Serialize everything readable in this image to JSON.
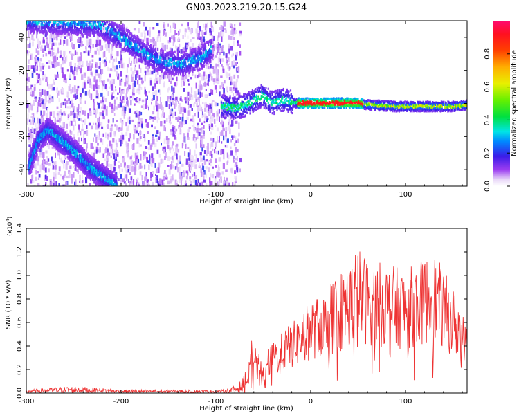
{
  "title": "GN03.2023.219.20.15.G24",
  "chart_data": [
    {
      "type": "heatmap",
      "xlabel": "Height of straight line (km)",
      "ylabel": "Frequency (Hz)",
      "xlim": [
        -300,
        165
      ],
      "ylim": [
        -50,
        50
      ],
      "x_ticks": [
        -300,
        -200,
        -100,
        0,
        100
      ],
      "y_ticks": [
        -40,
        -20,
        0,
        20,
        40
      ],
      "colorbar": {
        "label": "Normalized spectral amplitude",
        "range": [
          0,
          1
        ],
        "ticks": [
          0.0,
          0.2,
          0.4,
          0.6,
          0.8
        ]
      },
      "features": [
        {
          "name": "upper-arc",
          "points": [
            [
              -300,
              50
            ],
            [
              -225,
              48
            ],
            [
              -195,
              38
            ],
            [
              -175,
              30
            ],
            [
              -155,
              25
            ],
            [
              -135,
              24
            ],
            [
              -115,
              28
            ],
            [
              -105,
              33
            ]
          ]
        },
        {
          "name": "lower-arc",
          "points": [
            [
              -298,
              -38
            ],
            [
              -288,
              -22
            ],
            [
              -278,
              -16
            ],
            [
              -265,
              -22
            ],
            [
              -248,
              -30
            ],
            [
              -235,
              -38
            ],
            [
              -218,
              -45
            ],
            [
              -205,
              -50
            ]
          ]
        },
        {
          "name": "main-ridge",
          "points": [
            [
              -95,
              -2
            ],
            [
              -80,
              -3
            ],
            [
              -65,
              0
            ],
            [
              -52,
              5
            ],
            [
              -42,
              0
            ],
            [
              -30,
              2
            ],
            [
              -15,
              0
            ],
            [
              0,
              0
            ],
            [
              30,
              0
            ],
            [
              50,
              0
            ],
            [
              60,
              -1
            ],
            [
              90,
              -2
            ],
            [
              120,
              -2
            ],
            [
              150,
              -2
            ],
            [
              165,
              -1
            ]
          ]
        }
      ],
      "noise_region": {
        "x": [
          -300,
          -75
        ],
        "y": [
          -50,
          50
        ]
      }
    },
    {
      "type": "line",
      "xlabel": "Height of straight line (km)",
      "ylabel": "SNR (10 * v/v)",
      "exponent_label": "(x10",
      "exponent_power": "4",
      "exponent_close": ")",
      "xlim": [
        -300,
        165
      ],
      "ylim": [
        0,
        14000
      ],
      "x_ticks": [
        -300,
        -200,
        -100,
        0,
        100
      ],
      "y_tick_labels": [
        "0.0",
        "0.2",
        "0.4",
        "0.6",
        "0.8",
        "1.0",
        "1.2",
        "1.4"
      ],
      "envelope": [
        [
          -300,
          300
        ],
        [
          -250,
          600
        ],
        [
          -200,
          300
        ],
        [
          -150,
          280
        ],
        [
          -100,
          260
        ],
        [
          -90,
          300
        ],
        [
          -80,
          600
        ],
        [
          -72,
          1200
        ],
        [
          -65,
          2800
        ],
        [
          -60,
          4500
        ],
        [
          -55,
          3500
        ],
        [
          -50,
          2200
        ],
        [
          -45,
          3500
        ],
        [
          -40,
          5000
        ],
        [
          -35,
          4500
        ],
        [
          -28,
          5500
        ],
        [
          -20,
          6000
        ],
        [
          -12,
          6500
        ],
        [
          0,
          8000
        ],
        [
          15,
          8500
        ],
        [
          25,
          10000
        ],
        [
          40,
          11000
        ],
        [
          50,
          12500
        ],
        [
          60,
          11500
        ],
        [
          80,
          11000
        ],
        [
          100,
          10500
        ],
        [
          120,
          11500
        ],
        [
          130,
          12000
        ],
        [
          140,
          10500
        ],
        [
          150,
          9000
        ],
        [
          158,
          8000
        ],
        [
          165,
          7500
        ]
      ],
      "series": [
        {
          "color": "#ee3333"
        }
      ]
    }
  ]
}
